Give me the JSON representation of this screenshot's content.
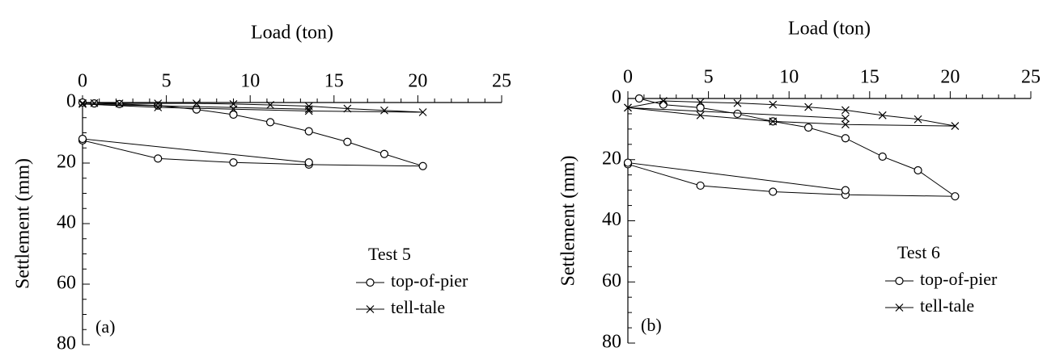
{
  "chart_data": [
    {
      "type": "line",
      "xlabel": "Load (ton)",
      "ylabel": "Settlement (mm)",
      "panel_label": "(a)",
      "legend_title": "Test 5",
      "xlim": [
        0,
        25
      ],
      "xticks": [
        0,
        5,
        10,
        15,
        20,
        25
      ],
      "ylim": [
        0,
        80
      ],
      "yticks": [
        0,
        20,
        40,
        60,
        80
      ],
      "y_inverted": true,
      "x_axis_top": true,
      "legend": "lower right",
      "series": [
        {
          "name": "top-of-pier",
          "marker": "circle",
          "color": "#000000",
          "x": [
            0,
            0.7,
            2.2,
            4.5,
            6.8,
            9,
            11.2,
            13.5,
            15.8,
            18,
            20.3,
            13.5,
            9,
            4.5,
            0,
            0,
            13.5
          ],
          "values": [
            0,
            0.3,
            0.5,
            1,
            2.3,
            4,
            6.5,
            9.5,
            13,
            17,
            21,
            20.5,
            19.8,
            18.5,
            12.5,
            12,
            19.8
          ]
        },
        {
          "name": "tell-tale",
          "marker": "cross",
          "color": "#000000",
          "x": [
            0,
            0.7,
            2.2,
            4.5,
            6.8,
            9,
            11.2,
            13.5,
            15.8,
            18,
            20.3,
            13.5,
            9,
            4.5,
            0,
            13.5
          ],
          "values": [
            0.2,
            0.2,
            0.3,
            0.3,
            0.3,
            0.5,
            0.8,
            1.2,
            2,
            2.6,
            3.2,
            2.8,
            2.2,
            1.6,
            0.5,
            2.2
          ]
        }
      ]
    },
    {
      "type": "line",
      "xlabel": "Load (ton)",
      "ylabel": "Settlement (mm)",
      "panel_label": "(b)",
      "legend_title": "Test 6",
      "xlim": [
        0,
        25
      ],
      "xticks": [
        0,
        5,
        10,
        15,
        20,
        25
      ],
      "ylim": [
        0,
        80
      ],
      "yticks": [
        0,
        20,
        40,
        60,
        80
      ],
      "y_inverted": true,
      "x_axis_top": true,
      "legend": "lower right",
      "series": [
        {
          "name": "top-of-pier",
          "marker": "circle",
          "color": "#000000",
          "x": [
            0.7,
            2.2,
            4.5,
            6.8,
            9,
            11.2,
            13.5,
            15.8,
            18,
            20.3,
            13.5,
            9,
            4.5,
            0,
            0,
            13.5
          ],
          "values": [
            0,
            2,
            3,
            5,
            7.5,
            9.5,
            13,
            19,
            23.5,
            32,
            31.5,
            30.5,
            28.5,
            21.5,
            21,
            30
          ]
        },
        {
          "name": "tell-tale",
          "marker": "cross",
          "color": "#000000",
          "x": [
            0,
            2.2,
            4.5,
            6.8,
            9,
            11.2,
            13.5,
            15.8,
            18,
            20.3,
            13.5,
            9,
            4.5,
            0,
            13.5
          ],
          "values": [
            3,
            0.8,
            1.2,
            1.5,
            2,
            2.8,
            3.8,
            5.5,
            6.8,
            9,
            8.5,
            7.5,
            5.5,
            3,
            6.5
          ]
        }
      ]
    }
  ]
}
